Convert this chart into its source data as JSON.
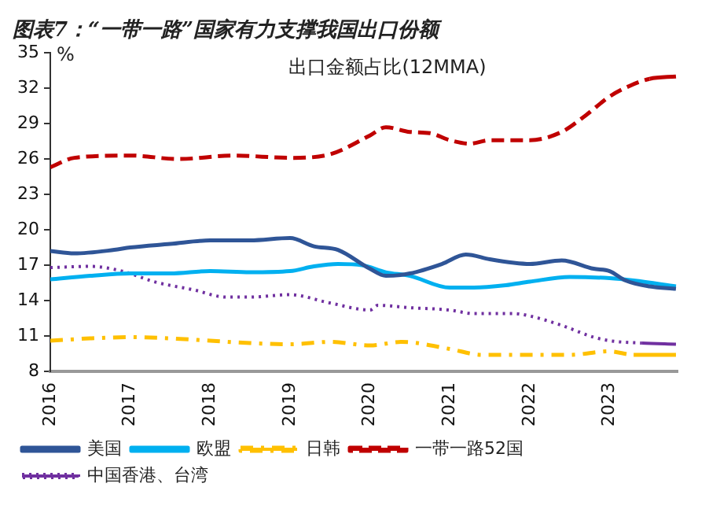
{
  "chart_data": {
    "type": "line",
    "title": "图表7：“一带一路”国家有力支撑我国出口份额",
    "ylabel": "%",
    "annotations": [
      "出口金额占比(12MMA)"
    ],
    "xlim": [
      2016,
      2023.85
    ],
    "xticks": [
      2016,
      2017,
      2018,
      2019,
      2020,
      2021,
      2022,
      2023
    ],
    "ylim": [
      8,
      35
    ],
    "yticks": [
      8,
      11,
      14,
      17,
      20,
      23,
      26,
      29,
      32,
      35
    ],
    "grid": false,
    "legend": "bottom",
    "marker": "none",
    "series": [
      {
        "name": "美国",
        "color": "#2f5597",
        "line_style": "solid",
        "x": [
          2016,
          2016.3,
          2016.8,
          2017,
          2017.5,
          2018,
          2018.5,
          2019,
          2019.3,
          2019.6,
          2020,
          2020.2,
          2020.5,
          2020.9,
          2021.2,
          2021.5,
          2021.8,
          2022,
          2022.4,
          2022.8,
          2023,
          2023.2,
          2023.5,
          2023.83
        ],
        "values": [
          18.2,
          18.0,
          18.3,
          18.5,
          18.8,
          19.1,
          19.1,
          19.3,
          18.6,
          18.3,
          16.7,
          16.1,
          16.3,
          17.1,
          17.9,
          17.5,
          17.2,
          17.1,
          17.4,
          16.7,
          16.5,
          15.7,
          15.2,
          15.0
        ]
      },
      {
        "name": "欧盟",
        "color": "#00b0f0",
        "line_style": "solid",
        "x": [
          2016,
          2016.5,
          2017,
          2017.5,
          2018,
          2018.5,
          2019,
          2019.3,
          2019.6,
          2019.9,
          2020.2,
          2020.5,
          2021,
          2021.3,
          2021.7,
          2022,
          2022.5,
          2023,
          2023.3,
          2023.83
        ],
        "values": [
          15.8,
          16.1,
          16.3,
          16.3,
          16.5,
          16.4,
          16.5,
          16.9,
          17.1,
          17.0,
          16.4,
          16.1,
          15.1,
          15.1,
          15.3,
          15.6,
          16.0,
          15.9,
          15.7,
          15.2
        ]
      },
      {
        "name": "日韩",
        "color": "#ffc000",
        "line_style": "dashdot",
        "x": [
          2016,
          2016.5,
          2017,
          2017.5,
          2018,
          2018.5,
          2019,
          2019.5,
          2020,
          2020.4,
          2021,
          2021.4,
          2022,
          2022.5,
          2023,
          2023.3,
          2023.83
        ],
        "values": [
          10.6,
          10.8,
          10.9,
          10.8,
          10.6,
          10.4,
          10.3,
          10.5,
          10.2,
          10.5,
          9.9,
          9.4,
          9.4,
          9.4,
          9.7,
          9.4,
          9.4
        ]
      },
      {
        "name": "一带一路52国",
        "color": "#c00000",
        "line_style": "dashed",
        "x": [
          2016,
          2016.3,
          2017,
          2017.6,
          2018.3,
          2019,
          2019.5,
          2020,
          2020.2,
          2020.5,
          2020.75,
          2021,
          2021.25,
          2021.5,
          2022,
          2022.4,
          2022.7,
          2023,
          2023.25,
          2023.5,
          2023.83
        ],
        "values": [
          25.3,
          26.1,
          26.3,
          26.0,
          26.3,
          26.1,
          26.4,
          28.0,
          28.7,
          28.3,
          28.2,
          27.6,
          27.3,
          27.6,
          27.6,
          28.3,
          29.7,
          31.3,
          32.2,
          32.8,
          33.0
        ]
      },
      {
        "name": "中国香港、台湾",
        "color": "#7030a0",
        "line_style": "dotted",
        "x": [
          2016,
          2016.5,
          2016.9,
          2017.3,
          2017.8,
          2018.2,
          2018.5,
          2019,
          2019.5,
          2020,
          2020.1,
          2020.5,
          2021,
          2021.3,
          2021.8,
          2022,
          2022.4,
          2022.8,
          2023,
          2023.4,
          2023.83
        ],
        "values": [
          16.8,
          16.9,
          16.5,
          15.6,
          14.9,
          14.3,
          14.3,
          14.5,
          13.8,
          13.2,
          13.6,
          13.4,
          13.2,
          12.9,
          12.9,
          12.7,
          11.9,
          10.9,
          10.6,
          10.4,
          10.3
        ]
      }
    ]
  }
}
